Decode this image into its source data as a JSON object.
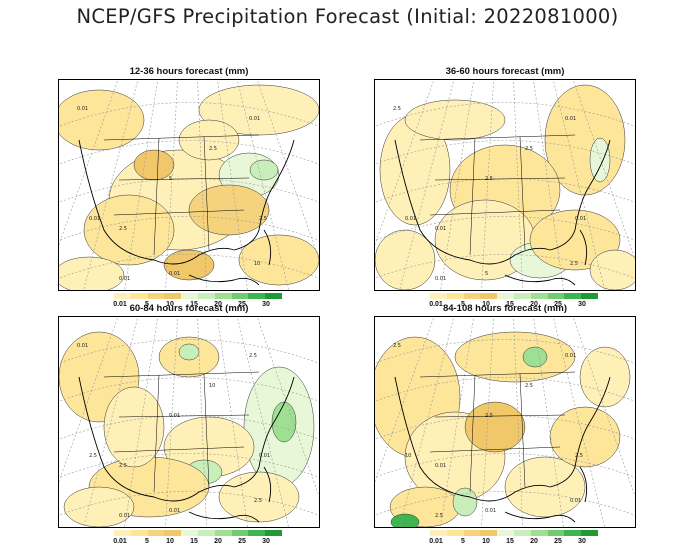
{
  "title": "NCEP/GFS Precipitation Forecast (Initial: 2022081000)",
  "colorbar": {
    "colors": [
      "#fff0b8",
      "#fde59a",
      "#f5d27e",
      "#f0c769",
      "#e8f7d8",
      "#c8eeb9",
      "#9fdf94",
      "#6fcc70",
      "#3fb550",
      "#1f9a37"
    ],
    "labels": [
      "0.01",
      "5",
      "10",
      "15",
      "20",
      "25",
      "30"
    ]
  },
  "panels": [
    {
      "title": "12-36 hours forecast (mm)",
      "labels": [
        "0.01",
        "2.5",
        "5",
        "0.01",
        "2.5",
        "0.01",
        "0.01",
        "2.5",
        "10",
        "0.01"
      ]
    },
    {
      "title": "36-60 hours forecast (mm)",
      "labels": [
        "2.5",
        "0.01",
        "2.5",
        "0.01",
        "2.5",
        "5",
        "0.01",
        "0.01",
        "2.5",
        "0.01"
      ]
    },
    {
      "title": "60-84 hours forecast (mm)",
      "labels": [
        "0.01",
        "2.5",
        "0.01",
        "2.5",
        "10",
        "0.01",
        "2.5",
        "0.01",
        "2.5",
        "0.01"
      ]
    },
    {
      "title": "84-108 hours forecast (mm)",
      "labels": [
        "2.5",
        "0.01",
        "2.5",
        "0.01",
        "2.5",
        "0.01",
        "10",
        "2.5",
        "0.01",
        "2.5"
      ]
    }
  ]
}
